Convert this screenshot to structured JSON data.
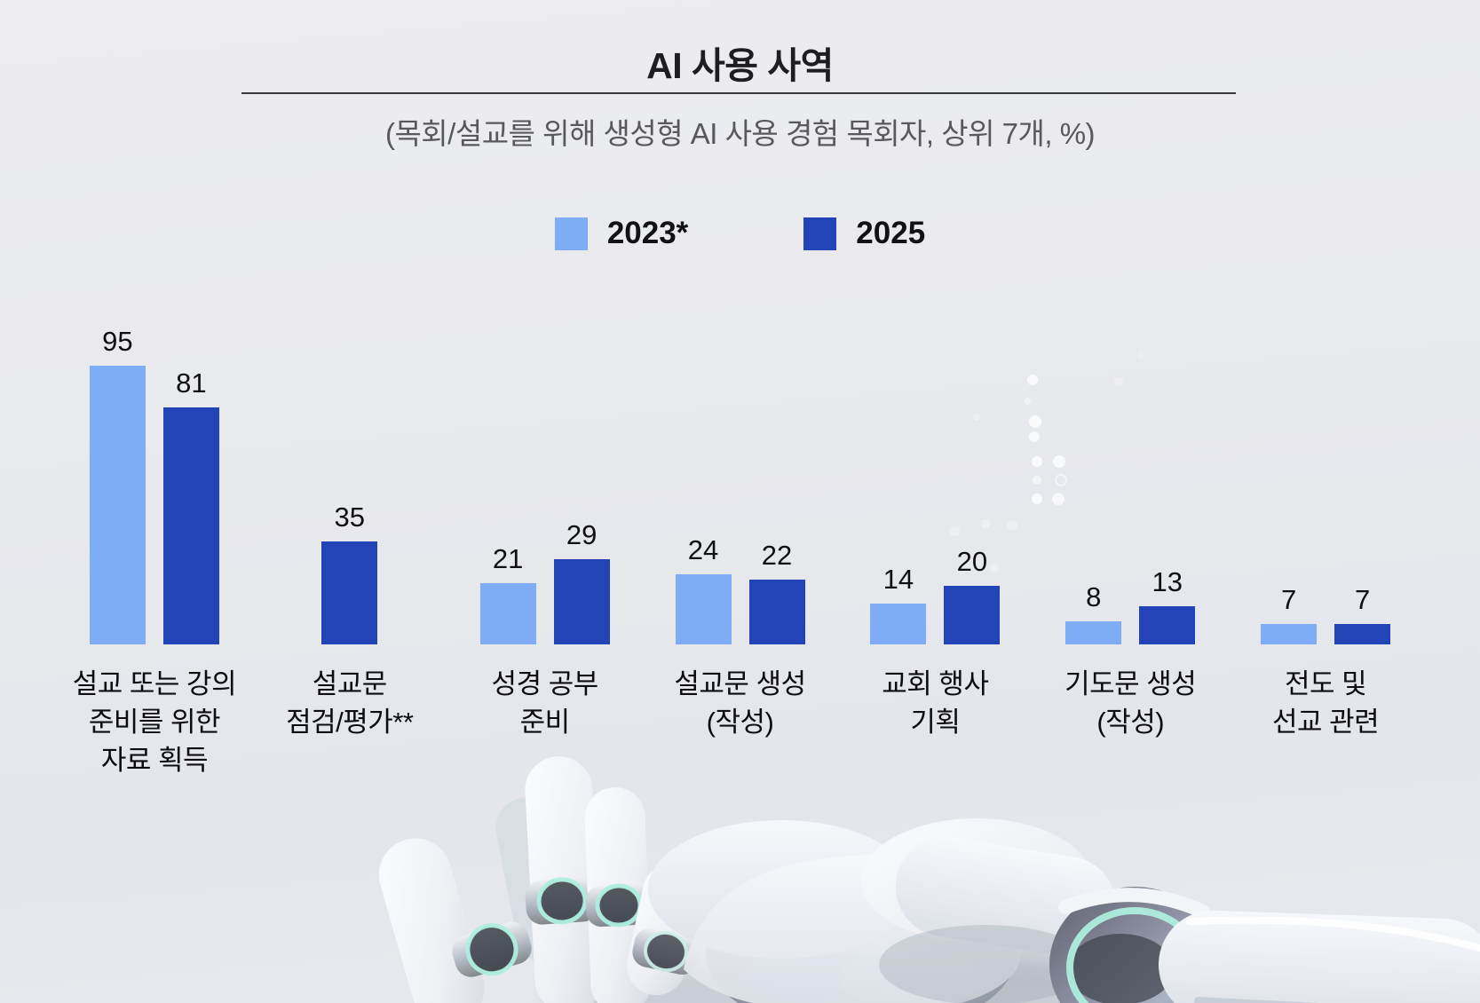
{
  "header": {
    "title": "AI 사용 사역",
    "subtitle": "(목회/설교를 위해 생성형 AI 사용 경험 목회자, 상위 7개, %)"
  },
  "colors": {
    "series_2023": "#7fadf5",
    "series_2025": "#2344b6",
    "background": "#e8e9ed",
    "title_text": "#1e1e20",
    "subtitle_text": "#58585d"
  },
  "decor": {
    "robot_hand": "robot-hand-illustration",
    "dot_pattern": "faint-white-dot-columns"
  },
  "chart_data": {
    "type": "bar",
    "title": "AI 사용 사역",
    "subtitle": "(목회/설교를 위해 생성형 AI 사용 경험 목회자, 상위 7개, %)",
    "unit": "%",
    "categories": [
      "설교 또는 강의\n준비를 위한\n자료 획득",
      "설교문\n점검/평가**",
      "성경 공부\n준비",
      "설교문 생성\n(작성)",
      "교회 행사\n기획",
      "기도문 생성\n(작성)",
      "전도 및\n선교 관련"
    ],
    "series": [
      {
        "name": "2023*",
        "color": "#7fadf5",
        "values": [
          95,
          null,
          21,
          24,
          14,
          8,
          7
        ]
      },
      {
        "name": "2025",
        "color": "#2344b6",
        "values": [
          81,
          35,
          29,
          22,
          20,
          13,
          7
        ]
      }
    ],
    "ylim": [
      0,
      100
    ],
    "grid": false,
    "value_labels": "above-bars",
    "legend_position": "top-center"
  }
}
